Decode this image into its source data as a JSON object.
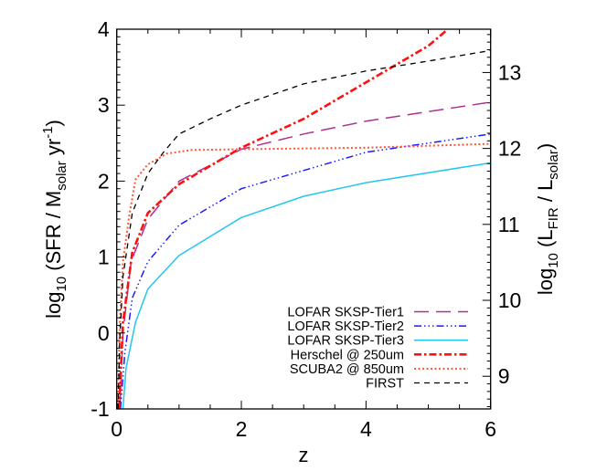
{
  "chart_data": {
    "type": "line",
    "title": "",
    "xlabel": "z",
    "ylabel": {
      "pre": "log",
      "sub1": "10",
      "mid": " (SFR / M",
      "sub2": "solar",
      "mid2": " yr",
      "sup": "-1",
      "post": ")"
    },
    "y2label": {
      "pre": "log",
      "sub1": "10",
      "mid": " (L",
      "sub2": "FIR",
      "mid2": " / L",
      "sub3": "solar",
      "post": ")"
    },
    "xlim": [
      0,
      6
    ],
    "ylim": [
      -1,
      4
    ],
    "y2lim": [
      8.57,
      13.57
    ],
    "xticks": [
      "0",
      "2",
      "4",
      "6"
    ],
    "yticks": [
      "-1",
      "0",
      "1",
      "2",
      "3",
      "4"
    ],
    "y2ticks": [
      "9",
      "10",
      "11",
      "12",
      "13"
    ],
    "grid": false,
    "legend_position": "bottom-right",
    "series": [
      {
        "name": "LOFAR SKSP-Tier1",
        "color": "#b0308f",
        "style": "long-dash",
        "x": [
          0.05,
          0.1,
          0.23,
          0.5,
          1,
          2,
          3,
          4,
          6
        ],
        "y": [
          -1,
          0,
          0.94,
          1.5,
          2.0,
          2.42,
          2.62,
          2.79,
          3.04
        ]
      },
      {
        "name": "LOFAR SKSP-Tier2",
        "color": "#1a1aff",
        "style": "dash-dot-dot-dot",
        "x": [
          0.06,
          0.13,
          0.25,
          0.5,
          1,
          2,
          4,
          6
        ],
        "y": [
          -1,
          -0.26,
          0.46,
          0.94,
          1.42,
          1.9,
          2.38,
          2.62
        ]
      },
      {
        "name": "LOFAR SKSP-Tier3",
        "color": "#22c7f0",
        "style": "solid",
        "x": [
          0.1,
          0.15,
          0.3,
          0.5,
          1,
          2,
          3,
          4,
          6
        ],
        "y": [
          -1,
          -0.46,
          0.14,
          0.58,
          1.02,
          1.52,
          1.8,
          1.98,
          2.24
        ]
      },
      {
        "name": "Herschel @ 250um",
        "color": "#ff1010",
        "style": "dash-dot",
        "x": [
          0.04,
          0.1,
          0.25,
          0.5,
          1,
          2,
          3,
          4,
          5,
          5.3
        ],
        "y": [
          -1,
          0.14,
          1.06,
          1.58,
          1.96,
          2.44,
          2.82,
          3.3,
          3.78,
          3.99
        ]
      },
      {
        "name": "SCUBA2 @ 850um",
        "color": "#ff5533",
        "style": "dotted",
        "x": [
          0.02,
          0.05,
          0.1,
          0.2,
          0.3,
          0.5,
          0.8,
          1.2,
          2,
          4,
          6
        ],
        "y": [
          -1,
          0.14,
          0.94,
          1.54,
          2.02,
          2.22,
          2.36,
          2.41,
          2.42,
          2.44,
          2.49
        ]
      },
      {
        "name": "FIRST",
        "color": "#000000",
        "style": "dashed",
        "x": [
          0.02,
          0.05,
          0.1,
          0.25,
          0.5,
          0.75,
          1,
          1.5,
          2,
          3,
          4,
          5,
          6
        ],
        "y": [
          -1,
          -0.06,
          0.74,
          1.58,
          2.1,
          2.38,
          2.62,
          2.82,
          3.0,
          3.28,
          3.45,
          3.58,
          3.72
        ]
      }
    ]
  }
}
